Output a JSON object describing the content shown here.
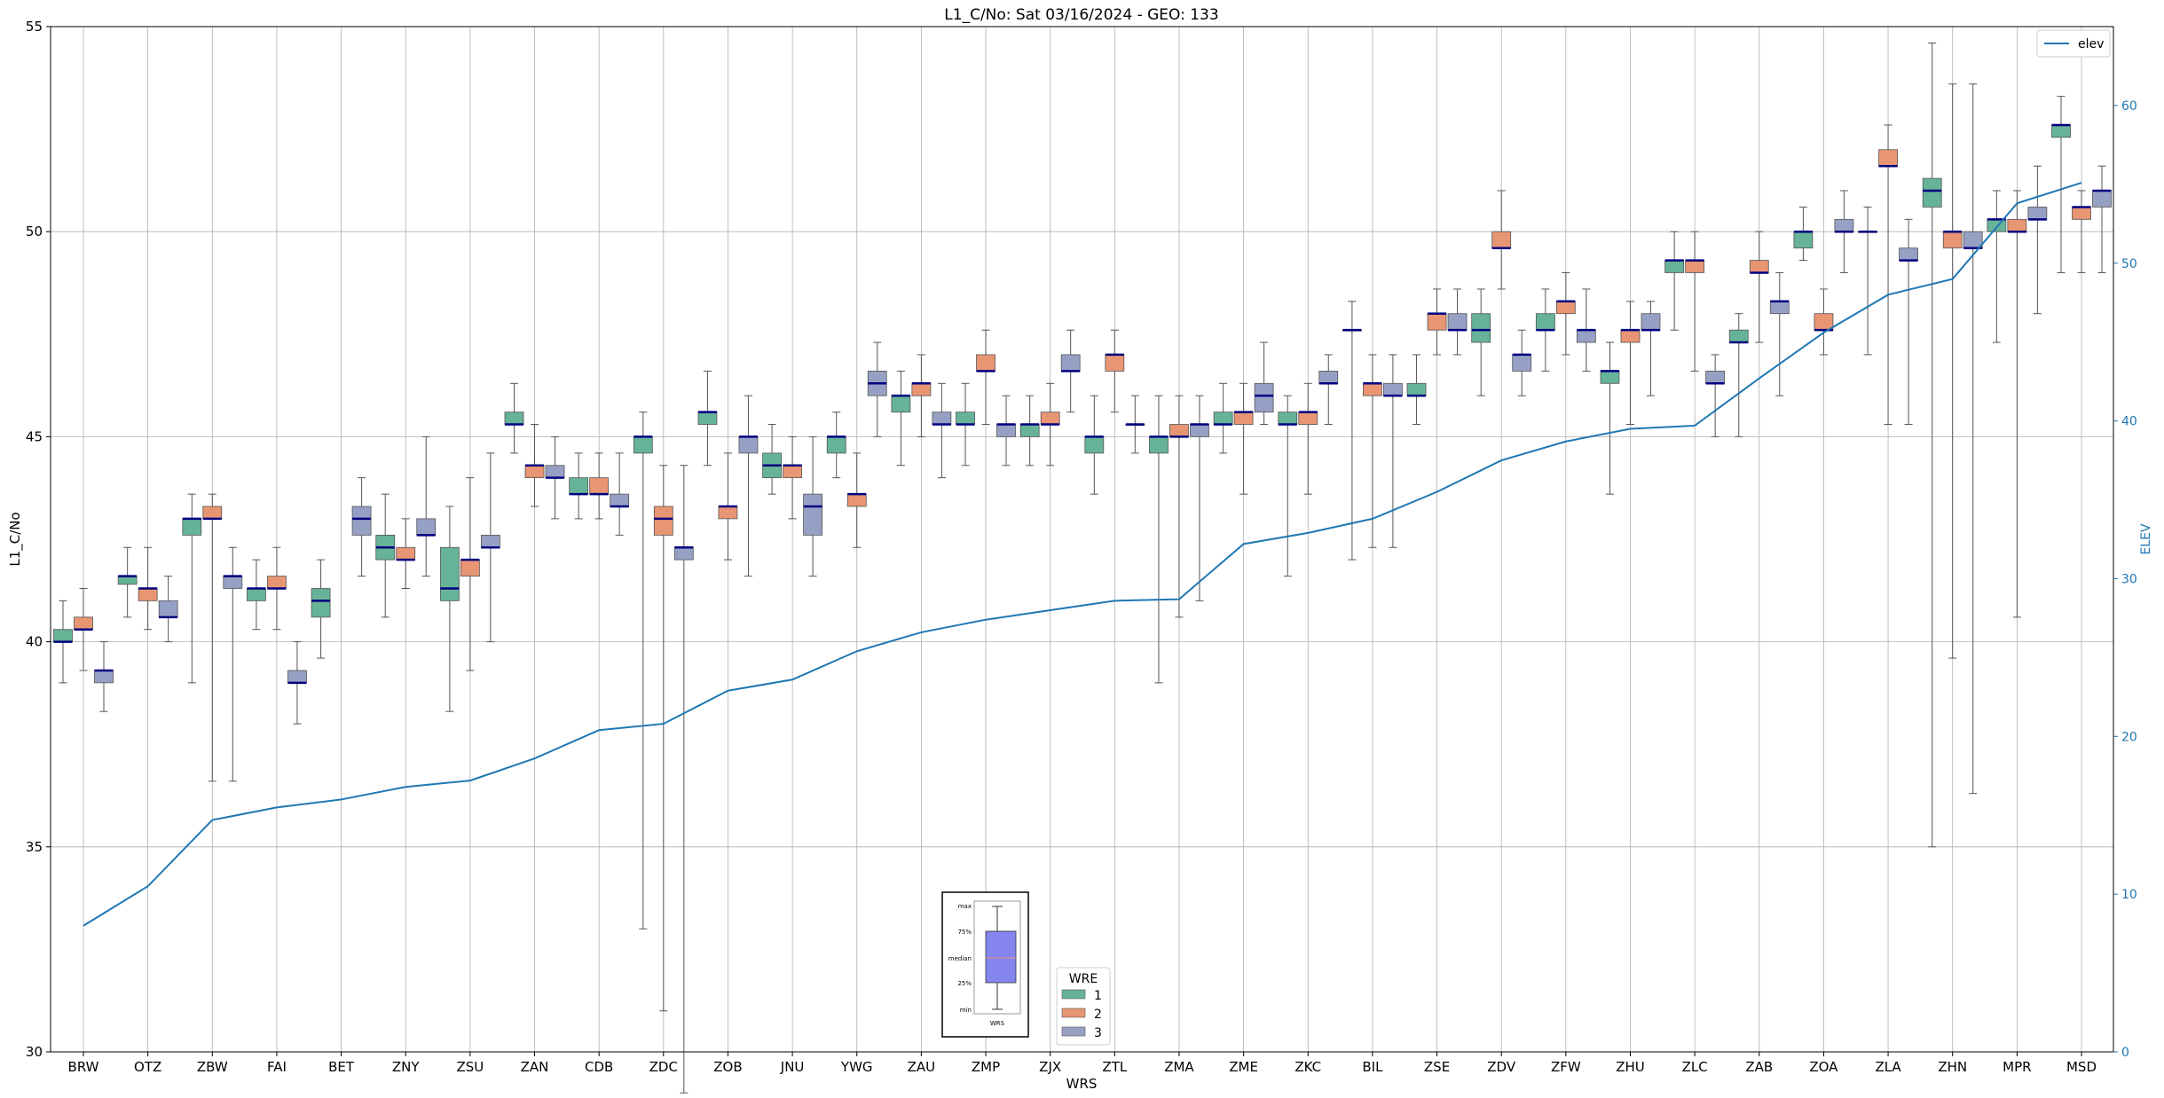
{
  "chart_data": {
    "type": "box",
    "title": "L1_C/No: Sat 03/16/2024 - GEO: 133",
    "xlabel": "WRS",
    "ylabel": "L1_C/No",
    "y2label": "ELEV",
    "ylim": [
      30,
      55
    ],
    "y2lim": [
      0,
      65
    ],
    "yticks": [
      30,
      35,
      40,
      45,
      50,
      55
    ],
    "y2ticks": [
      0,
      10,
      20,
      30,
      40,
      50,
      60
    ],
    "grid": true,
    "colors": {
      "wre1": "#66b397",
      "wre2": "#e89573",
      "wre3": "#96a0c4",
      "elev": "#1f77b4",
      "median": "#000080"
    },
    "categories": [
      "BRW",
      "OTZ",
      "ZBW",
      "FAI",
      "BET",
      "ZNY",
      "ZSU",
      "ZAN",
      "CDB",
      "ZDC",
      "ZOB",
      "JNU",
      "YWG",
      "ZAU",
      "ZMP",
      "ZJX",
      "ZTL",
      "ZMA",
      "ZME",
      "ZKC",
      "BIL",
      "ZSE",
      "ZDV",
      "ZFW",
      "ZHU",
      "ZLC",
      "ZAB",
      "ZOA",
      "ZLA",
      "ZHN",
      "MPR",
      "MSD"
    ],
    "boxes": {
      "wre1": [
        [
          39,
          40,
          40,
          40.3,
          41
        ],
        [
          40.6,
          41.4,
          41.6,
          41.6,
          42.3
        ],
        [
          39,
          42.6,
          43,
          43,
          43.6
        ],
        [
          40.3,
          41,
          41.3,
          41.3,
          42
        ],
        [
          39.6,
          40.6,
          41,
          41.3,
          42
        ],
        [
          40.6,
          42,
          42.3,
          42.6,
          43.6
        ],
        [
          38.3,
          41,
          41.3,
          42.3,
          43.3
        ],
        [
          44.6,
          45.3,
          45.3,
          45.6,
          46.3
        ],
        [
          43,
          43.6,
          43.6,
          44,
          44.6
        ],
        [
          33,
          44.6,
          45,
          45,
          45.6
        ],
        [
          44.3,
          45.3,
          45.6,
          45.6,
          46.6
        ],
        [
          43.6,
          44,
          44.3,
          44.6,
          45.3
        ],
        [
          44,
          44.6,
          45,
          45,
          45.6
        ],
        [
          44.3,
          45.6,
          46,
          46,
          46.6
        ],
        [
          44.3,
          45.3,
          45.3,
          45.6,
          46.3
        ],
        [
          44.3,
          45,
          45.3,
          45.3,
          46
        ],
        [
          43.6,
          44.6,
          45,
          45,
          46
        ],
        [
          39,
          44.6,
          45,
          45,
          46
        ],
        [
          44.6,
          45.3,
          45.3,
          45.6,
          46.3
        ],
        [
          41.6,
          45.3,
          45.3,
          45.6,
          46
        ],
        [
          42,
          47.6,
          47.6,
          47.6,
          48.3
        ],
        [
          45.3,
          46,
          46,
          46.3,
          47
        ],
        [
          46,
          47.3,
          47.6,
          48,
          48.6
        ],
        [
          46.6,
          47.6,
          47.6,
          48,
          48.6
        ],
        [
          43.6,
          46.3,
          46.6,
          46.6,
          47.3
        ],
        [
          47.6,
          49,
          49.3,
          49.3,
          50
        ],
        [
          45,
          47.3,
          47.3,
          47.6,
          48
        ],
        [
          49.3,
          49.6,
          50,
          50,
          50.6
        ],
        [
          47,
          50,
          50,
          50,
          50.6
        ],
        [
          35,
          50.6,
          51,
          51.3,
          54.6
        ],
        [
          47.3,
          50,
          50.3,
          50.3,
          51
        ],
        [
          49,
          52.3,
          52.6,
          52.6,
          53.3
        ]
      ],
      "wre2": [
        [
          39.3,
          40.3,
          40.3,
          40.6,
          41.3
        ],
        [
          40.3,
          41,
          41.3,
          41.3,
          42.3
        ],
        [
          36.6,
          43,
          43,
          43.3,
          43.6
        ],
        [
          40.3,
          41.3,
          41.3,
          41.6,
          42.3
        ],
        null,
        [
          41.3,
          42,
          42,
          42.3,
          43
        ],
        [
          39.3,
          41.6,
          42,
          42,
          44
        ],
        [
          43.3,
          44,
          44.3,
          44.3,
          45.3
        ],
        [
          43,
          43.6,
          43.6,
          44,
          44.6
        ],
        [
          31,
          42.6,
          43,
          43.3,
          44.3
        ],
        [
          42,
          43,
          43.3,
          43.3,
          44.6
        ],
        [
          43,
          44,
          44.3,
          44.3,
          45
        ],
        [
          42.3,
          43.3,
          43.6,
          43.6,
          44.6
        ],
        [
          45,
          46,
          46.3,
          46.3,
          47
        ],
        [
          45.3,
          46.6,
          46.6,
          47,
          47.6
        ],
        [
          44.3,
          45.3,
          45.3,
          45.6,
          46.3
        ],
        [
          45.6,
          46.6,
          47,
          47,
          47.6
        ],
        [
          40.6,
          45,
          45,
          45.3,
          46
        ],
        [
          43.6,
          45.3,
          45.6,
          45.6,
          46.3
        ],
        [
          43.6,
          45.3,
          45.6,
          45.6,
          46.3
        ],
        [
          42.3,
          46,
          46.3,
          46.3,
          47
        ],
        [
          47,
          47.6,
          48,
          48,
          48.6
        ],
        [
          48.6,
          49.6,
          49.6,
          50,
          51
        ],
        [
          47,
          48,
          48.3,
          48.3,
          49
        ],
        [
          45.3,
          47.3,
          47.6,
          47.6,
          48.3
        ],
        [
          46.6,
          49,
          49.3,
          49.3,
          50
        ],
        [
          47.3,
          49,
          49,
          49.3,
          50
        ],
        [
          47,
          47.6,
          47.6,
          48,
          48.6
        ],
        [
          45.3,
          51.6,
          51.6,
          52,
          52.6
        ],
        [
          39.6,
          49.6,
          50,
          50,
          53.6
        ],
        [
          40.6,
          50,
          50,
          50.3,
          51
        ],
        [
          49,
          50.3,
          50.6,
          50.6,
          51
        ]
      ],
      "wre3": [
        [
          38.3,
          39,
          39.3,
          39.3,
          40
        ],
        [
          40,
          40.6,
          40.6,
          41,
          41.6
        ],
        [
          36.6,
          41.3,
          41.6,
          41.6,
          42.3
        ],
        [
          38,
          39,
          39,
          39.3,
          40
        ],
        [
          41.6,
          42.6,
          43,
          43.3,
          44
        ],
        [
          41.6,
          42.6,
          42.6,
          43,
          45
        ],
        [
          40,
          42.3,
          42.3,
          42.6,
          44.6
        ],
        [
          43,
          44,
          44,
          44.3,
          45
        ],
        [
          42.6,
          43.3,
          43.3,
          43.6,
          44.6
        ],
        [
          29,
          42,
          42.3,
          42.3,
          44.3
        ],
        [
          41.6,
          44.6,
          45,
          45,
          46
        ],
        [
          41.6,
          42.6,
          43.3,
          43.6,
          45
        ],
        [
          45,
          46,
          46.3,
          46.6,
          47.3
        ],
        [
          44,
          45.3,
          45.3,
          45.6,
          46.3
        ],
        [
          44.3,
          45,
          45.3,
          45.3,
          46
        ],
        [
          45.6,
          46.6,
          46.6,
          47,
          47.6
        ],
        [
          44.6,
          45.3,
          45.3,
          45.3,
          46
        ],
        [
          41,
          45,
          45.3,
          45.3,
          46
        ],
        [
          45.3,
          45.6,
          46,
          46.3,
          47.3
        ],
        [
          45.3,
          46.3,
          46.3,
          46.6,
          47
        ],
        [
          42.3,
          46,
          46,
          46.3,
          47
        ],
        [
          47,
          47.6,
          47.6,
          48,
          48.6
        ],
        [
          46,
          46.6,
          47,
          47,
          47.6
        ],
        [
          46.6,
          47.3,
          47.6,
          47.6,
          48.6
        ],
        [
          46,
          47.6,
          47.6,
          48,
          48.3
        ],
        [
          45,
          46.3,
          46.3,
          46.6,
          47
        ],
        [
          46,
          48,
          48.3,
          48.3,
          49
        ],
        [
          49,
          50,
          50,
          50.3,
          51
        ],
        [
          45.3,
          49.3,
          49.3,
          49.6,
          50.3
        ],
        [
          36.3,
          49.6,
          49.6,
          50,
          53.6
        ],
        [
          48,
          50.3,
          50.3,
          50.6,
          51.6
        ],
        [
          49,
          50.6,
          51,
          51,
          51.6
        ]
      ]
    },
    "elev": [
      8,
      10.5,
      14.7,
      15.5,
      16,
      16.8,
      17.2,
      18.6,
      20.4,
      20.8,
      22.9,
      23.6,
      25.4,
      26.6,
      27.4,
      28,
      28.6,
      28.7,
      32.2,
      32.9,
      33.8,
      35.5,
      37.5,
      38.7,
      39.5,
      39.7,
      42.7,
      45.6,
      48,
      49,
      53.8,
      55.1
    ],
    "legend": {
      "title": "WRE",
      "entries": [
        "1",
        "2",
        "3"
      ],
      "line_label": "elev",
      "line_legend_position": "top-right",
      "box_legend_position": "lower-center"
    },
    "inset": {
      "labels": [
        "max",
        "75%",
        "median",
        "25%",
        "min"
      ],
      "xlabel": "WRS"
    }
  }
}
